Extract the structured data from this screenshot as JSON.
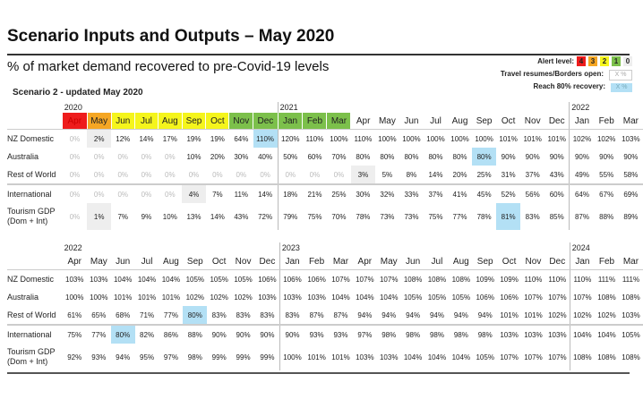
{
  "title": "Scenario Inputs and Outputs – May 2020",
  "subtitle": "% of market demand recovered to pre-Covid-19 levels",
  "scenario": "Scenario 2 - updated May 2020",
  "legend": {
    "alert_label": "Alert level:",
    "alert_levels": [
      {
        "v": "4",
        "c": "#ee1c1c"
      },
      {
        "v": "3",
        "c": "#f5a623"
      },
      {
        "v": "2",
        "c": "#f5f51c"
      },
      {
        "v": "1",
        "c": "#7cc04b"
      },
      {
        "v": "0",
        "c": "#eeeeee"
      }
    ],
    "travel_label": "Travel resumes/Borders open:",
    "travel_box": "X %",
    "recovery_label": "Reach 80% recovery:",
    "recovery_box": "X %"
  },
  "row_labels": [
    "NZ Domestic",
    "Australia",
    "Rest of World",
    "International",
    "Tourism GDP (Dom + Int)"
  ],
  "tables": [
    {
      "years": [
        {
          "col": 0,
          "y": "2020"
        },
        {
          "col": 9,
          "y": "2021"
        },
        {
          "col": 21,
          "y": "2022"
        }
      ],
      "months": [
        "Apr",
        "May",
        "Jun",
        "Jul",
        "Aug",
        "Sep",
        "Oct",
        "Nov",
        "Dec",
        "Jan",
        "Feb",
        "Mar",
        "Apr",
        "May",
        "Jun",
        "Jul",
        "Aug",
        "Sep",
        "Oct",
        "Nov",
        "Dec",
        "Jan",
        "Feb",
        "Mar"
      ],
      "alert": [
        "#ee1c1c",
        "#f5a623",
        "#f5f51c",
        "#f5f51c",
        "#f5f51c",
        "#f5f51c",
        "#f5f51c",
        "#7cc04b",
        "#7cc04b",
        "#7cc04b",
        "#7cc04b",
        "#7cc04b"
      ],
      "rows": [
        [
          "0%",
          "2%",
          "12%",
          "14%",
          "17%",
          "19%",
          "19%",
          "64%",
          "110%",
          "120%",
          "110%",
          "100%",
          "110%",
          "100%",
          "100%",
          "100%",
          "100%",
          "100%",
          "101%",
          "101%",
          "101%",
          "102%",
          "102%",
          "103%"
        ],
        [
          "0%",
          "0%",
          "0%",
          "0%",
          "0%",
          "10%",
          "20%",
          "30%",
          "40%",
          "50%",
          "60%",
          "70%",
          "80%",
          "80%",
          "80%",
          "80%",
          "80%",
          "80%",
          "90%",
          "90%",
          "90%",
          "90%",
          "90%",
          "90%"
        ],
        [
          "0%",
          "0%",
          "0%",
          "0%",
          "0%",
          "0%",
          "0%",
          "0%",
          "0%",
          "0%",
          "0%",
          "0%",
          "3%",
          "5%",
          "8%",
          "14%",
          "20%",
          "25%",
          "31%",
          "37%",
          "43%",
          "49%",
          "55%",
          "58%"
        ],
        [
          "0%",
          "0%",
          "0%",
          "0%",
          "0%",
          "4%",
          "7%",
          "11%",
          "14%",
          "18%",
          "21%",
          "25%",
          "30%",
          "32%",
          "33%",
          "37%",
          "41%",
          "45%",
          "52%",
          "56%",
          "60%",
          "64%",
          "67%",
          "69%"
        ],
        [
          "0%",
          "1%",
          "7%",
          "9%",
          "10%",
          "13%",
          "14%",
          "43%",
          "72%",
          "79%",
          "75%",
          "70%",
          "78%",
          "73%",
          "73%",
          "75%",
          "77%",
          "78%",
          "81%",
          "83%",
          "85%",
          "87%",
          "88%",
          "89%"
        ]
      ],
      "hl": [
        [
          0,
          1,
          "g"
        ],
        [
          0,
          8,
          "b"
        ],
        [
          1,
          17,
          "b"
        ],
        [
          2,
          12,
          "g"
        ],
        [
          3,
          5,
          "g"
        ],
        [
          4,
          1,
          "g"
        ],
        [
          4,
          18,
          "b"
        ]
      ]
    },
    {
      "years": [
        {
          "col": 0,
          "y": "2022"
        },
        {
          "col": 9,
          "y": "2023"
        },
        {
          "col": 21,
          "y": "2024"
        }
      ],
      "months": [
        "Apr",
        "May",
        "Jun",
        "Jul",
        "Aug",
        "Sep",
        "Oct",
        "Nov",
        "Dec",
        "Jan",
        "Feb",
        "Mar",
        "Apr",
        "May",
        "Jun",
        "Jul",
        "Aug",
        "Sep",
        "Oct",
        "Nov",
        "Dec",
        "Jan",
        "Feb",
        "Mar"
      ],
      "alert": [],
      "rows": [
        [
          "103%",
          "103%",
          "104%",
          "104%",
          "104%",
          "105%",
          "105%",
          "105%",
          "106%",
          "106%",
          "106%",
          "107%",
          "107%",
          "107%",
          "108%",
          "108%",
          "108%",
          "109%",
          "109%",
          "110%",
          "110%",
          "110%",
          "111%",
          "111%"
        ],
        [
          "100%",
          "100%",
          "101%",
          "101%",
          "101%",
          "102%",
          "102%",
          "102%",
          "103%",
          "103%",
          "103%",
          "104%",
          "104%",
          "104%",
          "105%",
          "105%",
          "105%",
          "106%",
          "106%",
          "107%",
          "107%",
          "107%",
          "108%",
          "108%"
        ],
        [
          "61%",
          "65%",
          "68%",
          "71%",
          "77%",
          "80%",
          "83%",
          "83%",
          "83%",
          "83%",
          "87%",
          "87%",
          "94%",
          "94%",
          "94%",
          "94%",
          "94%",
          "94%",
          "101%",
          "101%",
          "102%",
          "102%",
          "102%",
          "103%"
        ],
        [
          "75%",
          "77%",
          "80%",
          "82%",
          "86%",
          "88%",
          "90%",
          "90%",
          "90%",
          "90%",
          "93%",
          "93%",
          "97%",
          "98%",
          "98%",
          "98%",
          "98%",
          "98%",
          "103%",
          "103%",
          "103%",
          "104%",
          "104%",
          "105%"
        ],
        [
          "92%",
          "93%",
          "94%",
          "95%",
          "97%",
          "98%",
          "99%",
          "99%",
          "99%",
          "100%",
          "101%",
          "101%",
          "103%",
          "103%",
          "104%",
          "104%",
          "104%",
          "105%",
          "107%",
          "107%",
          "107%",
          "108%",
          "108%",
          "108%"
        ]
      ],
      "hl": [
        [
          2,
          5,
          "b"
        ],
        [
          3,
          2,
          "b"
        ]
      ]
    }
  ]
}
